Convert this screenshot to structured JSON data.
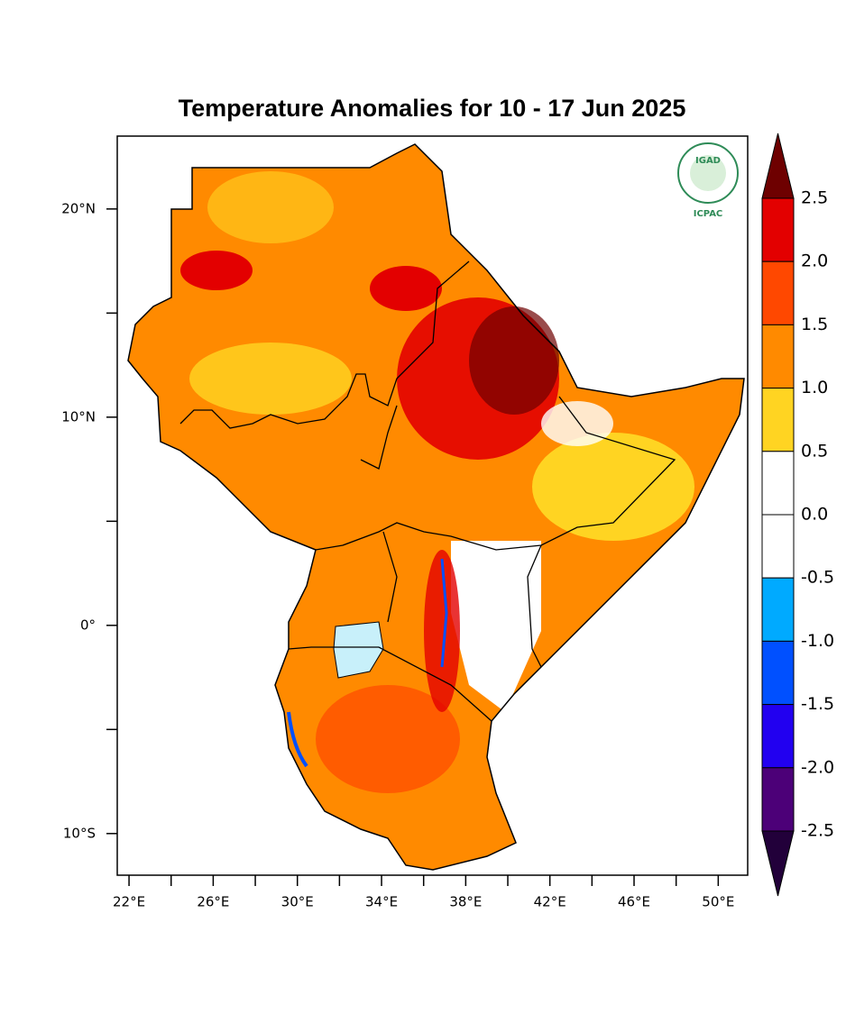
{
  "chart_data": {
    "type": "map",
    "title": "Temperature Anomalies for 10 - 17 Jun 2025",
    "logo": {
      "name": "IGAD",
      "centre": "ICPAC"
    },
    "xlim": [
      21.44,
      51.4
    ],
    "ylim": [
      -12,
      23.5
    ],
    "xticks": [
      {
        "value": 22,
        "label": "22°E"
      },
      {
        "value": 26,
        "label": "26°E"
      },
      {
        "value": 30,
        "label": "30°E"
      },
      {
        "value": 34,
        "label": "34°E"
      },
      {
        "value": 38,
        "label": "38°E"
      },
      {
        "value": 42,
        "label": "42°E"
      },
      {
        "value": 46,
        "label": "46°E"
      },
      {
        "value": 50,
        "label": "50°E"
      }
    ],
    "xminor": [
      24,
      28,
      32,
      36,
      40,
      44,
      48
    ],
    "yticks": [
      {
        "value": 20,
        "label": "20°N"
      },
      {
        "value": 10,
        "label": "10°N"
      },
      {
        "value": 0,
        "label": "0°"
      },
      {
        "value": -10,
        "label": "10°S"
      }
    ],
    "yminor": [
      15,
      5,
      -5
    ],
    "colorbar": {
      "levels": [
        2.5,
        {
          "value": 2,
          "label": "2.0"
        },
        1.5,
        {
          "value": 1,
          "label": "1.0"
        },
        0.5,
        {
          "value": 0,
          "label": "0.0"
        },
        -0.5,
        {
          "value": -1,
          "label": "-1.0"
        },
        -1.5,
        {
          "value": -2,
          "label": "-2.0"
        },
        -2.5
      ],
      "colors": [
        "#6e0000",
        "#e30000",
        "#ff4800",
        "#ff8a00",
        "#ffd422",
        "#ffffff",
        "#ffffff",
        "#00aaff",
        "#0050ff",
        "#2200f0",
        "#4c0078",
        "#22003a"
      ]
    }
  }
}
